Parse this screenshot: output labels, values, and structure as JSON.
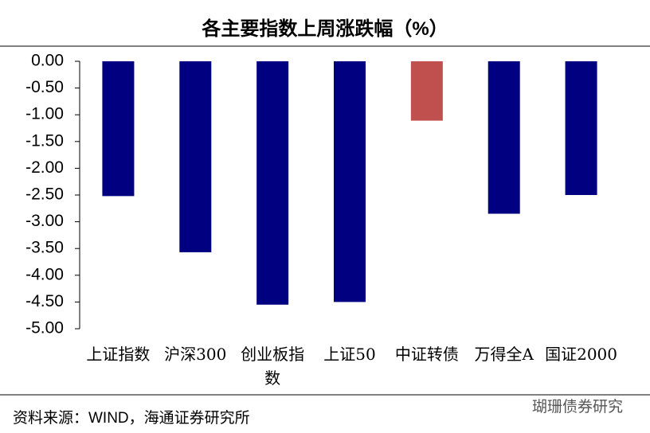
{
  "chart_data": {
    "type": "bar",
    "title": "各主要指数上周涨跌幅（%）",
    "categories": [
      "上证指数",
      "沪深300",
      "创业板指数",
      "上证50",
      "中证转债",
      "万得全A",
      "国证2000"
    ],
    "values": [
      -2.52,
      -3.57,
      -4.55,
      -4.5,
      -1.11,
      -2.85,
      -2.5
    ],
    "colors": [
      "#000080",
      "#000080",
      "#000080",
      "#000080",
      "#c0504d",
      "#000080",
      "#000080"
    ],
    "ylim": [
      -5,
      0
    ],
    "yticks": [
      {
        "value": 0,
        "label": "0.00"
      },
      {
        "value": -0.5,
        "label": "-0.50"
      },
      {
        "value": -1,
        "label": "-1.00"
      },
      {
        "value": -1.5,
        "label": "-1.50"
      },
      {
        "value": -2,
        "label": "-2.00"
      },
      {
        "value": -2.5,
        "label": "-2.50"
      },
      {
        "value": -3,
        "label": "-3.00"
      },
      {
        "value": -3.5,
        "label": "-3.50"
      },
      {
        "value": -4,
        "label": "-4.00"
      },
      {
        "value": -4.5,
        "label": "-4.50"
      },
      {
        "value": -5,
        "label": "-5.00"
      }
    ],
    "source": "资料来源：WIND，海通证券研究所",
    "watermark": "瑚珊债券研究"
  }
}
